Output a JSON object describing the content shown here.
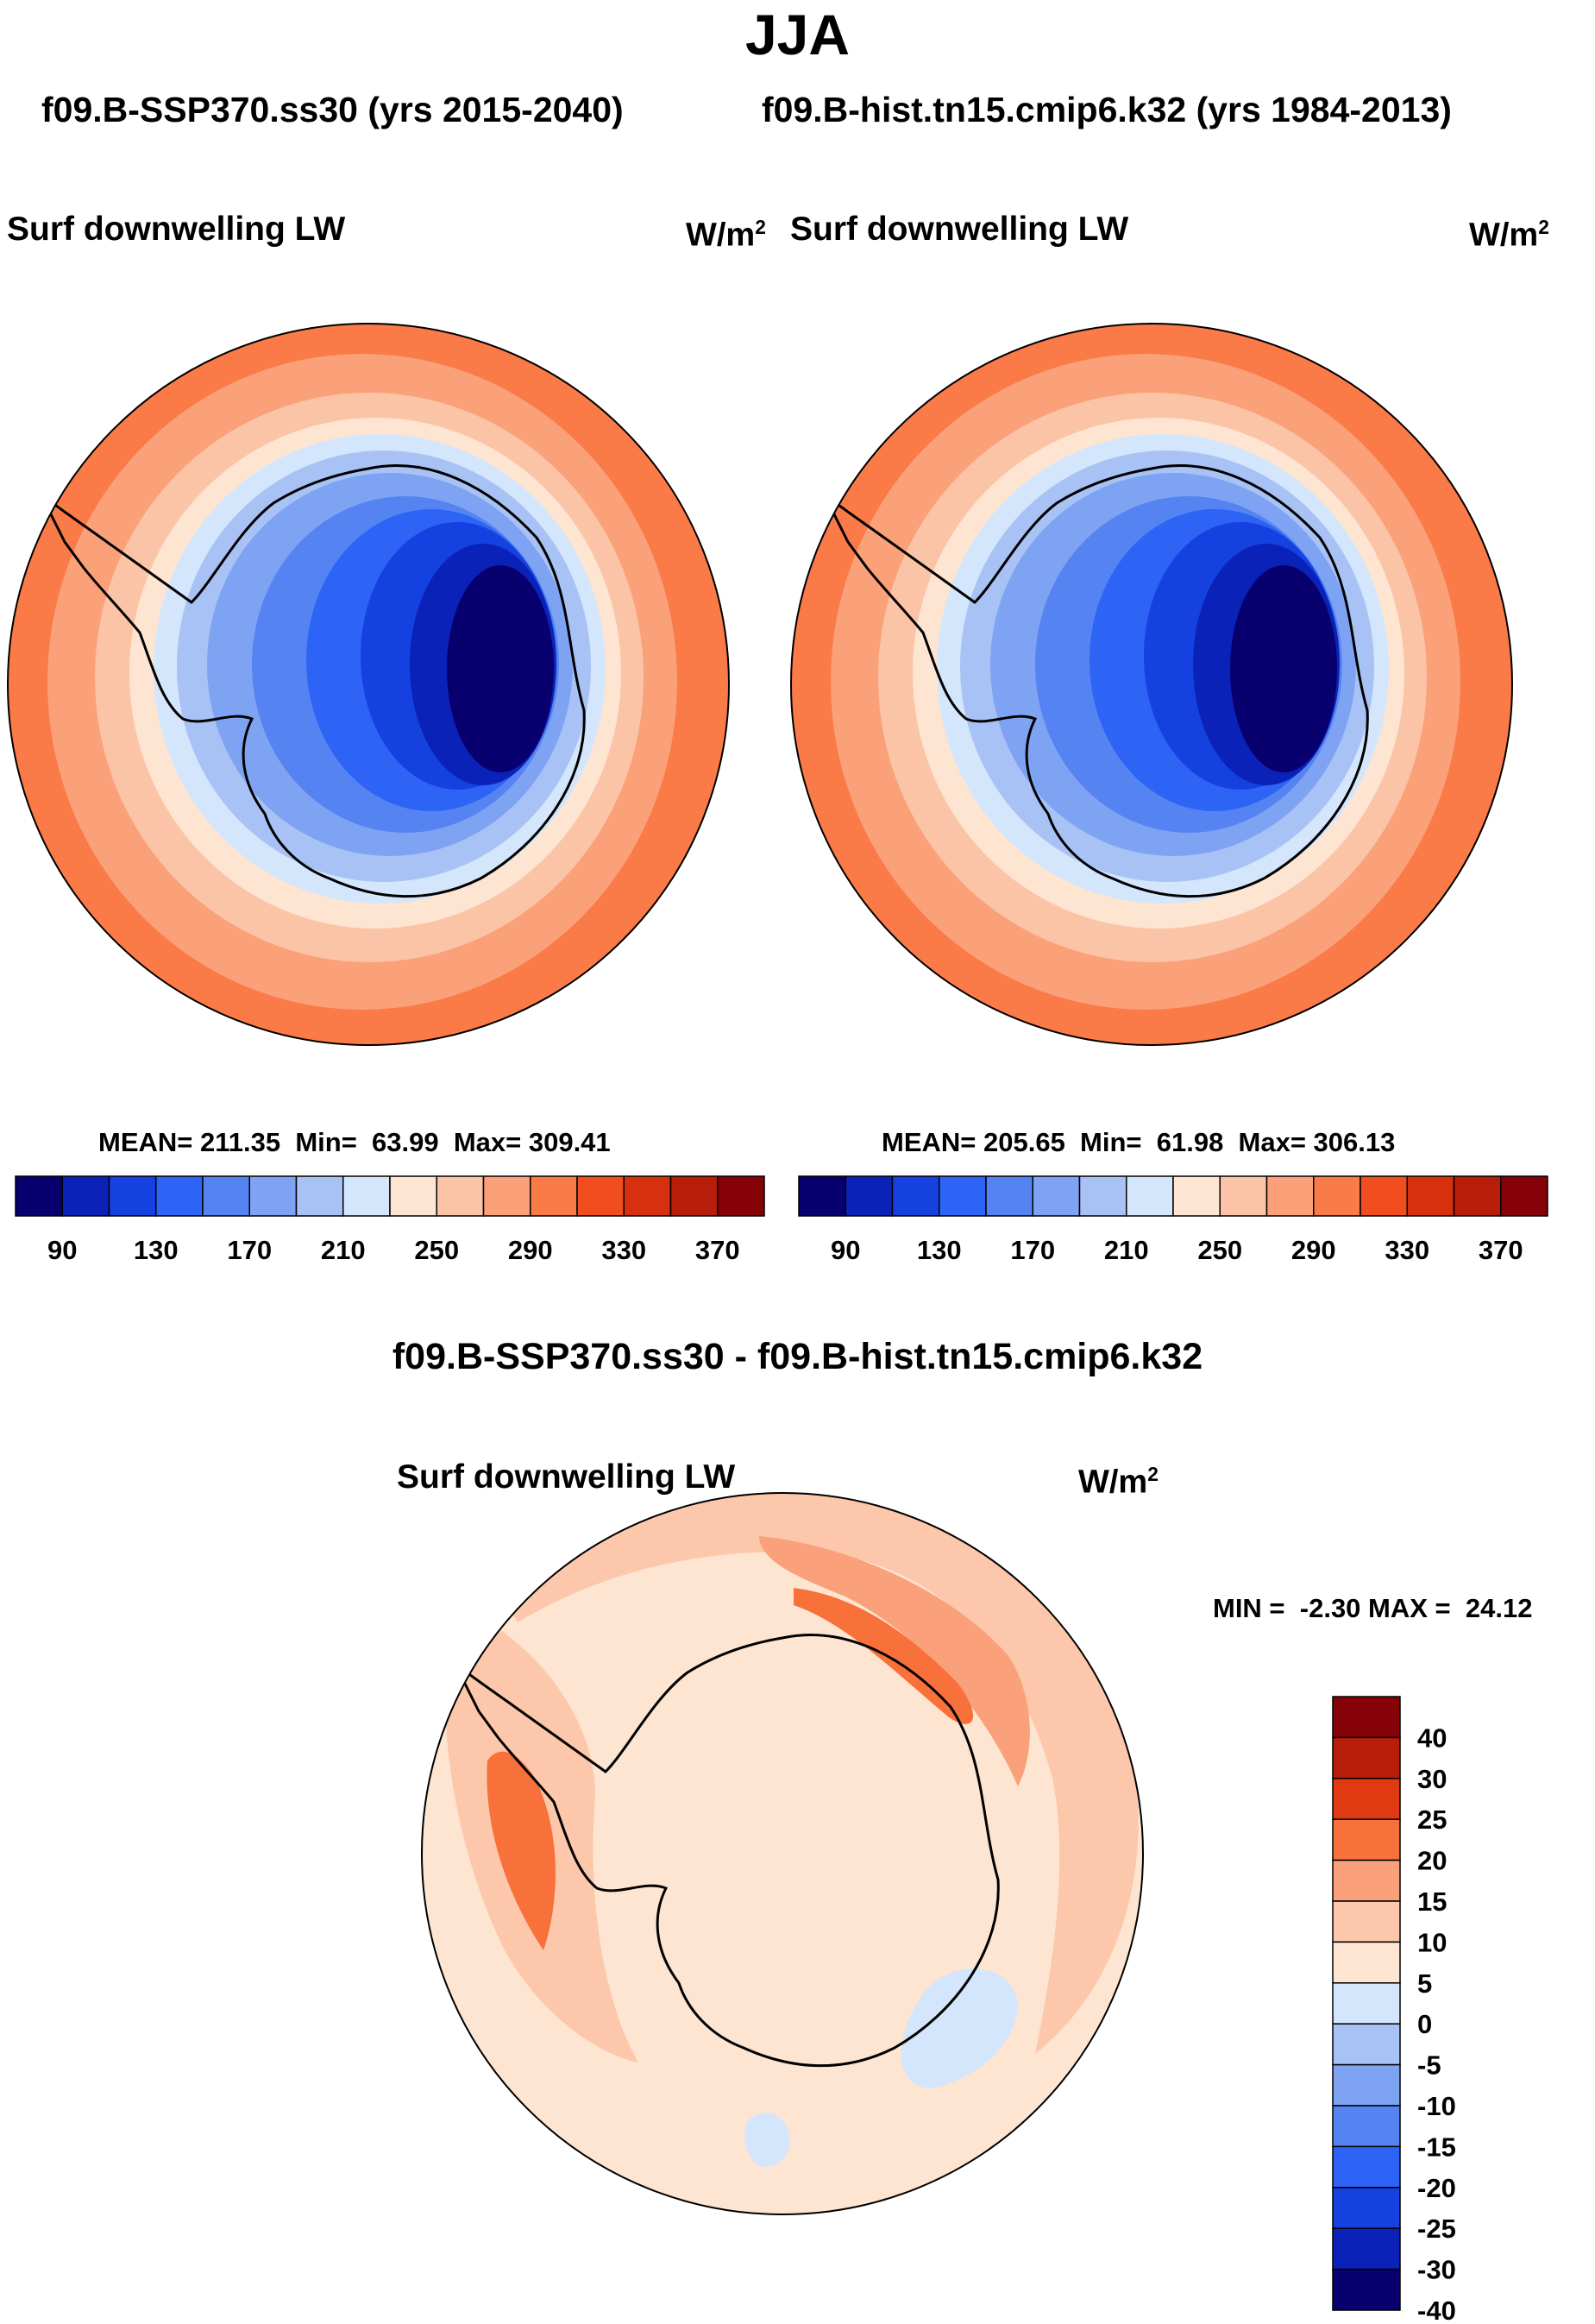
{
  "figure": {
    "season": "JJA",
    "case_left": "f09.B-SSP370.ss30 (yrs 2015-2040)",
    "case_right": "f09.B-hist.tn15.cmip6.k32 (yrs 1984-2013)",
    "diff_title": "f09.B-SSP370.ss30 - f09.B-hist.tn15.cmip6.k32"
  },
  "panels": [
    {
      "variable": "Surf downwelling LW",
      "units_base": "W/m",
      "units_exp": "2",
      "stats": "MEAN= 211.35  Min=  63.99  Max= 309.41"
    },
    {
      "variable": "Surf downwelling LW",
      "units_base": "W/m",
      "units_exp": "2",
      "stats": "MEAN= 205.65  Min=  61.98  Max= 306.13"
    }
  ],
  "diff_panel": {
    "variable": "Surf downwelling LW",
    "units_base": "W/m",
    "units_exp": "2",
    "stats": "MIN =  -2.30 MAX =  24.12"
  },
  "colorbar_main": {
    "labels": [
      "90",
      "130",
      "170",
      "210",
      "250",
      "290",
      "330",
      "370"
    ],
    "colors": [
      "#08006e",
      "#0a22b8",
      "#1541e0",
      "#2d64f5",
      "#5584f2",
      "#7fa3f3",
      "#a9c2f5",
      "#d4e6fb",
      "#fde5d2",
      "#fcc4a7",
      "#fba179",
      "#fa7a48",
      "#f24d1f",
      "#d7300e",
      "#b71e0a",
      "#850208"
    ]
  },
  "colorbar_diff": {
    "labels": [
      "40",
      "30",
      "25",
      "20",
      "15",
      "10",
      "5",
      "0",
      "-5",
      "-10",
      "-15",
      "-20",
      "-25",
      "-30",
      "-40"
    ],
    "colors": [
      "#850208",
      "#b71e0a",
      "#e03a12",
      "#f8703a",
      "#faa07a",
      "#fcc7aa",
      "#fde5d2",
      "#d4e6fb",
      "#a9c2f5",
      "#7fa3f3",
      "#5584f2",
      "#2d64f5",
      "#1541e0",
      "#0a22b8",
      "#07006e"
    ]
  },
  "chart_data": [
    {
      "type": "heatmap",
      "title": "Surf downwelling LW",
      "units": "W/m2",
      "projection": "South Polar Stereographic",
      "case": "f09.B-SSP370.ss30 (yrs 2015-2040)",
      "season": "JJA",
      "mean": 211.35,
      "min": 63.99,
      "max": 309.41,
      "contour_levels": [
        90,
        110,
        130,
        150,
        170,
        190,
        210,
        230,
        250,
        270,
        290,
        310,
        330,
        350,
        370
      ]
    },
    {
      "type": "heatmap",
      "title": "Surf downwelling LW",
      "units": "W/m2",
      "projection": "South Polar Stereographic",
      "case": "f09.B-hist.tn15.cmip6.k32 (yrs 1984-2013)",
      "season": "JJA",
      "mean": 205.65,
      "min": 61.98,
      "max": 306.13,
      "contour_levels": [
        90,
        110,
        130,
        150,
        170,
        190,
        210,
        230,
        250,
        270,
        290,
        310,
        330,
        350,
        370
      ]
    },
    {
      "type": "heatmap",
      "title": "Surf downwelling LW",
      "units": "W/m2",
      "projection": "South Polar Stereographic",
      "case": "f09.B-SSP370.ss30 - f09.B-hist.tn15.cmip6.k32",
      "season": "JJA",
      "min": -2.3,
      "max": 24.12,
      "contour_levels": [
        -40,
        -30,
        -25,
        -20,
        -15,
        -10,
        -5,
        0,
        5,
        10,
        15,
        20,
        25,
        30,
        40
      ]
    }
  ]
}
